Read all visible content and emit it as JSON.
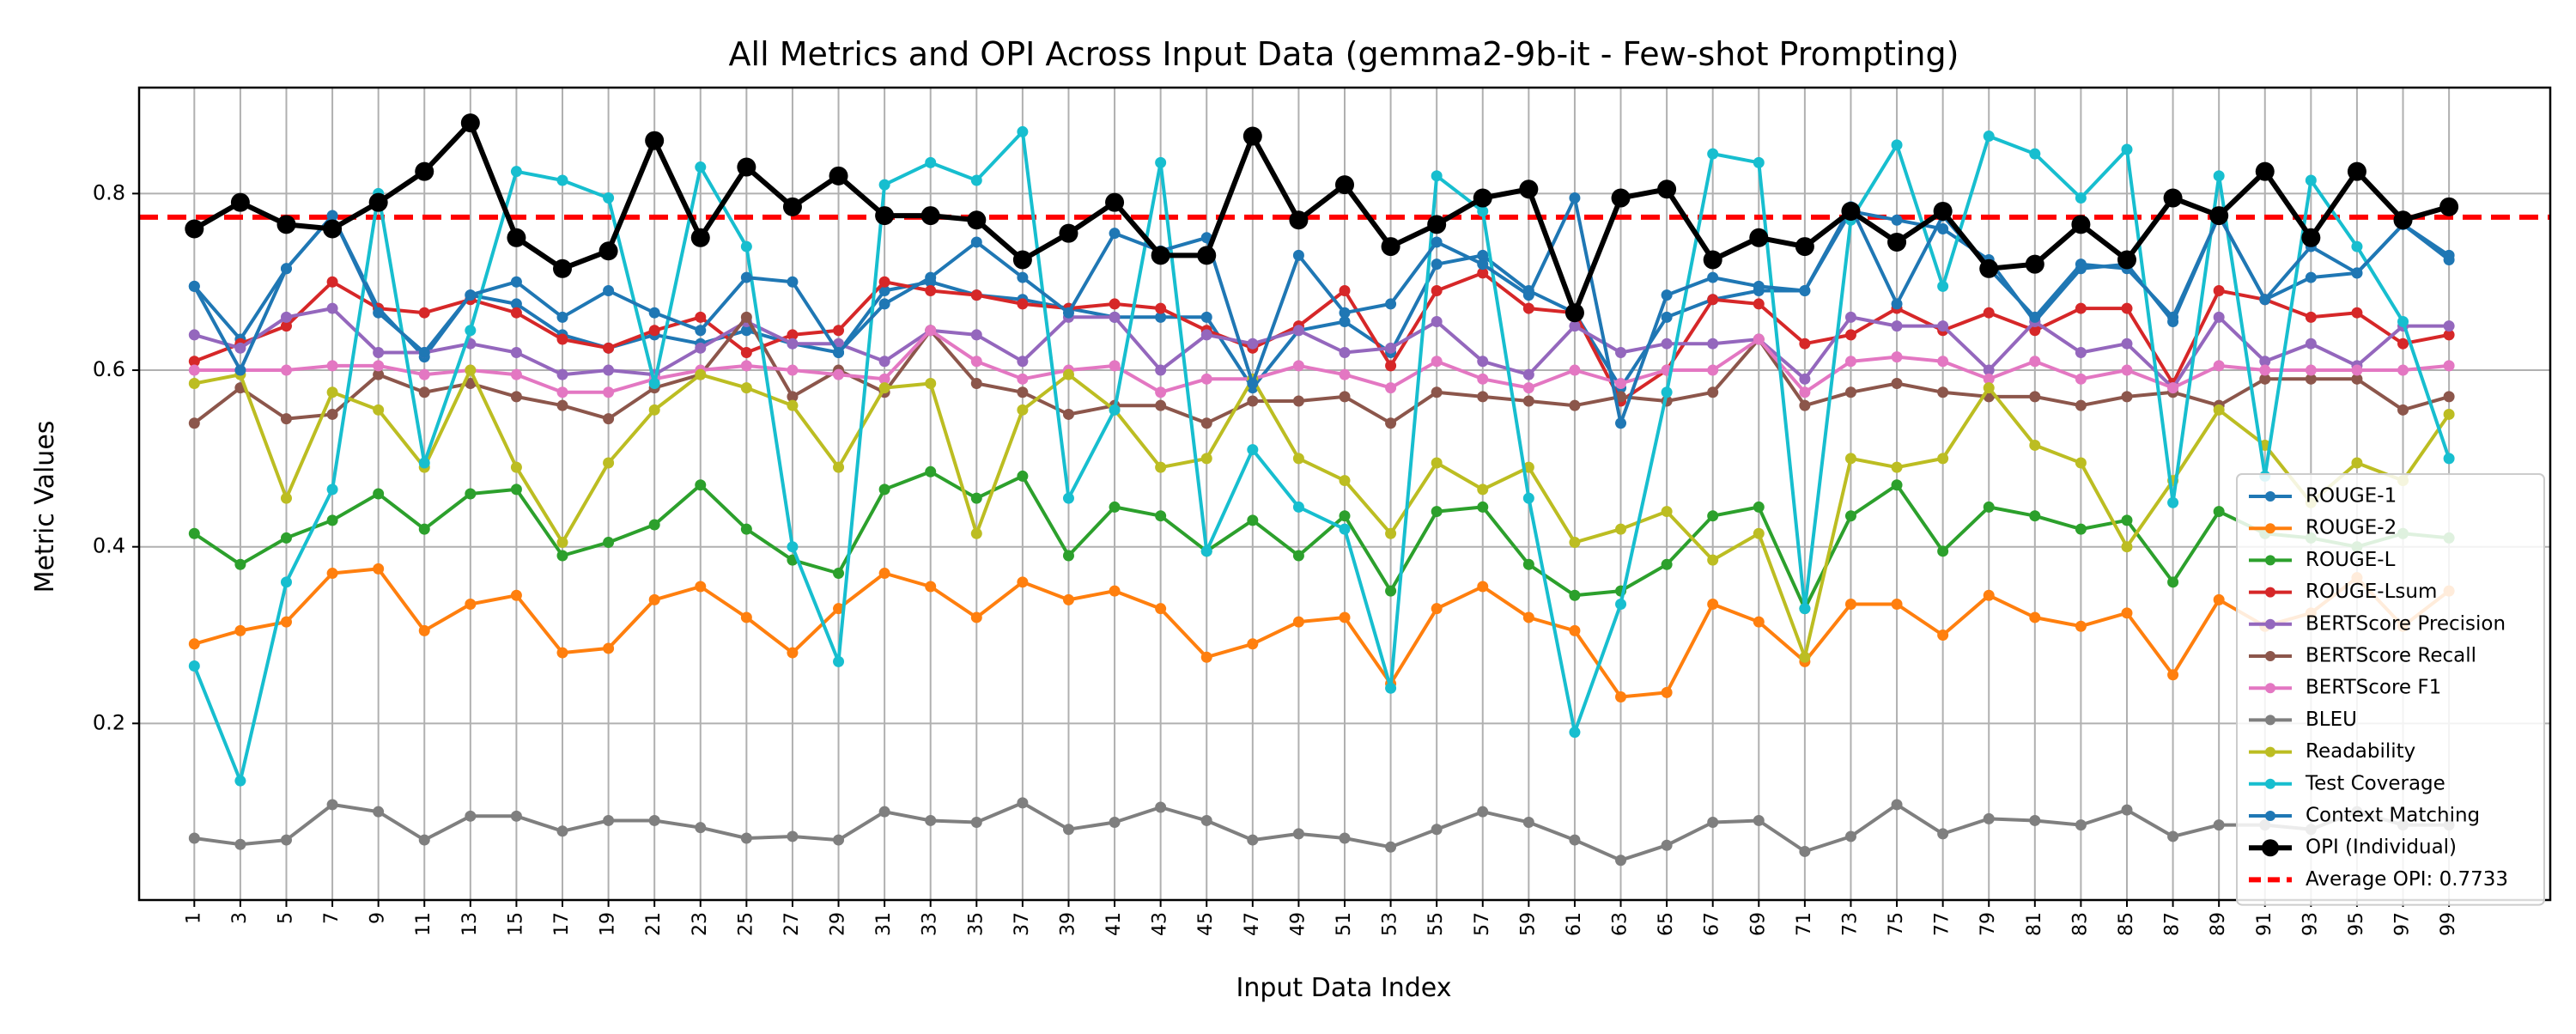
{
  "chart_data": {
    "type": "line",
    "title": "All Metrics and OPI Across Input Data (gemma2-9b-it - Few-shot Prompting)",
    "xlabel": "Input Data Index",
    "ylabel": "Metric Values",
    "ylim": [
      0.0,
      0.92
    ],
    "xlim": [
      -1.2,
      51.2
    ],
    "yticks": [
      "0.2",
      "0.4",
      "0.6",
      "0.8"
    ],
    "grid": true,
    "legend_position": "lower-right",
    "x": [
      "1",
      "3",
      "5",
      "7",
      "9",
      "11",
      "13",
      "15",
      "17",
      "19",
      "21",
      "23",
      "25",
      "27",
      "29",
      "31",
      "33",
      "35",
      "37",
      "39",
      "41",
      "43",
      "45",
      "47",
      "49",
      "51",
      "53",
      "55",
      "57",
      "59",
      "61",
      "63",
      "65",
      "67",
      "69",
      "71",
      "73",
      "75",
      "77",
      "79",
      "81",
      "83",
      "85",
      "87",
      "89",
      "91",
      "93",
      "95",
      "97",
      "99"
    ],
    "average_line": {
      "label": "Average OPI: 0.7733",
      "value": 0.7733,
      "color": "#ff0000"
    },
    "series": [
      {
        "name": "ROUGE-1",
        "color": "#1f77b4",
        "values": [
          0.695,
          0.635,
          0.715,
          0.775,
          0.67,
          0.615,
          0.685,
          0.675,
          0.64,
          0.625,
          0.64,
          0.63,
          0.645,
          0.63,
          0.62,
          0.69,
          0.7,
          0.685,
          0.68,
          0.67,
          0.66,
          0.66,
          0.66,
          0.58,
          0.645,
          0.655,
          0.62,
          0.72,
          0.73,
          0.69,
          0.665,
          0.58,
          0.66,
          0.68,
          0.69,
          0.69,
          0.78,
          0.77,
          0.76,
          0.725,
          0.655,
          0.715,
          0.72,
          0.655,
          0.775,
          0.68,
          0.705,
          0.71,
          0.765,
          0.73
        ]
      },
      {
        "name": "ROUGE-2",
        "color": "#ff7f0e",
        "values": [
          0.29,
          0.305,
          0.315,
          0.37,
          0.375,
          0.305,
          0.335,
          0.345,
          0.28,
          0.285,
          0.34,
          0.355,
          0.32,
          0.28,
          0.33,
          0.37,
          0.355,
          0.32,
          0.36,
          0.34,
          0.35,
          0.33,
          0.275,
          0.29,
          0.315,
          0.32,
          0.245,
          0.33,
          0.355,
          0.32,
          0.305,
          0.23,
          0.235,
          0.335,
          0.315,
          0.27,
          0.335,
          0.335,
          0.3,
          0.345,
          0.32,
          0.31,
          0.325,
          0.255,
          0.34,
          0.31,
          0.325,
          0.365,
          0.31,
          0.35
        ]
      },
      {
        "name": "ROUGE-L",
        "color": "#2ca02c",
        "values": [
          0.415,
          0.38,
          0.41,
          0.43,
          0.46,
          0.42,
          0.46,
          0.465,
          0.39,
          0.405,
          0.425,
          0.47,
          0.42,
          0.385,
          0.37,
          0.465,
          0.485,
          0.455,
          0.48,
          0.39,
          0.445,
          0.435,
          0.395,
          0.43,
          0.39,
          0.435,
          0.35,
          0.44,
          0.445,
          0.38,
          0.345,
          0.35,
          0.38,
          0.435,
          0.445,
          0.33,
          0.435,
          0.47,
          0.395,
          0.445,
          0.435,
          0.42,
          0.43,
          0.36,
          0.44,
          0.415,
          0.41,
          0.4,
          0.415,
          0.41
        ]
      },
      {
        "name": "ROUGE-Lsum",
        "color": "#d62728",
        "values": [
          0.61,
          0.63,
          0.65,
          0.7,
          0.67,
          0.665,
          0.68,
          0.665,
          0.635,
          0.625,
          0.645,
          0.66,
          0.62,
          0.64,
          0.645,
          0.7,
          0.69,
          0.685,
          0.675,
          0.67,
          0.675,
          0.67,
          0.645,
          0.625,
          0.65,
          0.69,
          0.605,
          0.69,
          0.71,
          0.67,
          0.665,
          0.565,
          0.6,
          0.68,
          0.675,
          0.63,
          0.64,
          0.67,
          0.645,
          0.665,
          0.645,
          0.67,
          0.67,
          0.585,
          0.69,
          0.68,
          0.66,
          0.665,
          0.63,
          0.64
        ]
      },
      {
        "name": "BERTScore Precision",
        "color": "#9467bd",
        "values": [
          0.64,
          0.625,
          0.66,
          0.67,
          0.62,
          0.62,
          0.63,
          0.62,
          0.595,
          0.6,
          0.595,
          0.625,
          0.655,
          0.63,
          0.63,
          0.61,
          0.645,
          0.64,
          0.61,
          0.66,
          0.66,
          0.6,
          0.64,
          0.63,
          0.645,
          0.62,
          0.625,
          0.655,
          0.61,
          0.595,
          0.65,
          0.62,
          0.63,
          0.63,
          0.635,
          0.59,
          0.66,
          0.65,
          0.65,
          0.6,
          0.655,
          0.62,
          0.63,
          0.58,
          0.66,
          0.61,
          0.63,
          0.605,
          0.65,
          0.65
        ]
      },
      {
        "name": "BERTScore Recall",
        "color": "#8c564b",
        "values": [
          0.54,
          0.58,
          0.545,
          0.55,
          0.595,
          0.575,
          0.585,
          0.57,
          0.56,
          0.545,
          0.58,
          0.595,
          0.66,
          0.57,
          0.6,
          0.575,
          0.645,
          0.585,
          0.575,
          0.55,
          0.56,
          0.56,
          0.54,
          0.565,
          0.565,
          0.57,
          0.54,
          0.575,
          0.57,
          0.565,
          0.56,
          0.57,
          0.565,
          0.575,
          0.635,
          0.56,
          0.575,
          0.585,
          0.575,
          0.57,
          0.57,
          0.56,
          0.57,
          0.575,
          0.56,
          0.59,
          0.59,
          0.59,
          0.555,
          0.57
        ]
      },
      {
        "name": "BERTScore F1",
        "color": "#e377c2",
        "values": [
          0.6,
          0.6,
          0.6,
          0.605,
          0.605,
          0.595,
          0.6,
          0.595,
          0.575,
          0.575,
          0.59,
          0.6,
          0.605,
          0.6,
          0.595,
          0.59,
          0.645,
          0.61,
          0.59,
          0.6,
          0.605,
          0.575,
          0.59,
          0.59,
          0.605,
          0.595,
          0.58,
          0.61,
          0.59,
          0.58,
          0.6,
          0.585,
          0.6,
          0.6,
          0.635,
          0.575,
          0.61,
          0.615,
          0.61,
          0.59,
          0.61,
          0.59,
          0.6,
          0.58,
          0.605,
          0.6,
          0.6,
          0.6,
          0.6,
          0.605
        ]
      },
      {
        "name": "BLEU",
        "color": "#7f7f7f",
        "values": [
          0.07,
          0.063,
          0.068,
          0.108,
          0.1,
          0.068,
          0.095,
          0.095,
          0.078,
          0.09,
          0.09,
          0.082,
          0.07,
          0.072,
          0.068,
          0.1,
          0.09,
          0.088,
          0.11,
          0.08,
          0.088,
          0.105,
          0.09,
          0.068,
          0.075,
          0.07,
          0.06,
          0.08,
          0.1,
          0.088,
          0.068,
          0.045,
          0.062,
          0.088,
          0.09,
          0.055,
          0.072,
          0.108,
          0.075,
          0.092,
          0.09,
          0.085,
          0.102,
          0.072,
          0.085,
          0.085,
          0.08,
          0.1,
          0.085,
          0.085
        ]
      },
      {
        "name": "Readability",
        "color": "#bcbd22",
        "values": [
          0.585,
          0.595,
          0.455,
          0.575,
          0.555,
          0.49,
          0.6,
          0.49,
          0.405,
          0.495,
          0.555,
          0.595,
          0.58,
          0.56,
          0.49,
          0.58,
          0.585,
          0.415,
          0.555,
          0.595,
          0.555,
          0.49,
          0.5,
          0.59,
          0.5,
          0.475,
          0.415,
          0.495,
          0.465,
          0.49,
          0.405,
          0.42,
          0.44,
          0.385,
          0.415,
          0.275,
          0.5,
          0.49,
          0.5,
          0.58,
          0.515,
          0.495,
          0.4,
          0.475,
          0.555,
          0.515,
          0.45,
          0.495,
          0.475,
          0.55
        ]
      },
      {
        "name": "Test Coverage",
        "color": "#17becf",
        "values": [
          0.265,
          0.135,
          0.36,
          0.465,
          0.8,
          0.495,
          0.645,
          0.825,
          0.815,
          0.795,
          0.585,
          0.83,
          0.74,
          0.4,
          0.27,
          0.81,
          0.835,
          0.815,
          0.87,
          0.455,
          0.555,
          0.835,
          0.395,
          0.51,
          0.445,
          0.42,
          0.24,
          0.82,
          0.78,
          0.455,
          0.19,
          0.335,
          0.575,
          0.845,
          0.835,
          0.33,
          0.77,
          0.855,
          0.695,
          0.865,
          0.845,
          0.795,
          0.85,
          0.45,
          0.82,
          0.48,
          0.815,
          0.74,
          0.655,
          0.5
        ]
      },
      {
        "name": "Context Matching",
        "color": "#1f77b4",
        "values": [
          0.695,
          0.6,
          0.715,
          0.775,
          0.665,
          0.62,
          0.685,
          0.7,
          0.66,
          0.69,
          0.665,
          0.645,
          0.705,
          0.7,
          0.62,
          0.675,
          0.705,
          0.745,
          0.705,
          0.665,
          0.755,
          0.735,
          0.75,
          0.585,
          0.73,
          0.665,
          0.675,
          0.745,
          0.72,
          0.685,
          0.795,
          0.54,
          0.685,
          0.705,
          0.695,
          0.69,
          0.785,
          0.675,
          0.775,
          0.715,
          0.66,
          0.72,
          0.715,
          0.66,
          0.775,
          0.68,
          0.74,
          0.71,
          0.765,
          0.725
        ]
      },
      {
        "name": "OPI (Individual)",
        "color": "#000000",
        "values": [
          0.76,
          0.79,
          0.765,
          0.76,
          0.79,
          0.825,
          0.88,
          0.75,
          0.715,
          0.735,
          0.86,
          0.75,
          0.83,
          0.785,
          0.82,
          0.775,
          0.775,
          0.77,
          0.725,
          0.755,
          0.79,
          0.73,
          0.73,
          0.865,
          0.77,
          0.81,
          0.74,
          0.765,
          0.795,
          0.805,
          0.665,
          0.795,
          0.805,
          0.725,
          0.75,
          0.74,
          0.78,
          0.745,
          0.78,
          0.715,
          0.72,
          0.765,
          0.725,
          0.795,
          0.775,
          0.825,
          0.75,
          0.825,
          0.77,
          0.785
        ]
      }
    ]
  }
}
